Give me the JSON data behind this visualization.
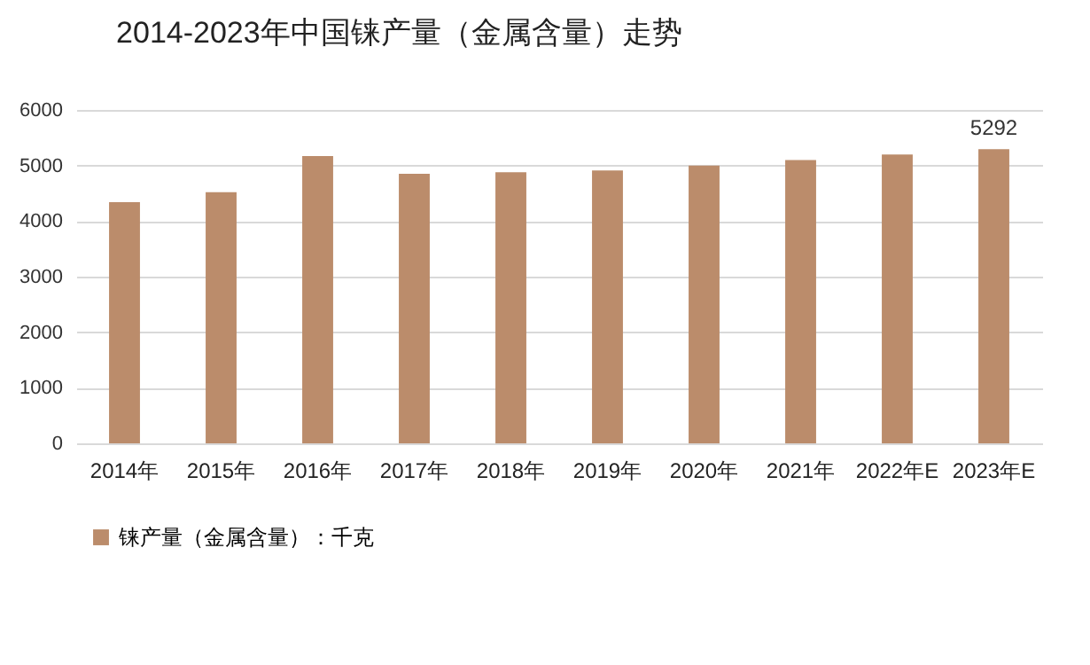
{
  "chart_data": {
    "type": "bar",
    "title": "2014-2023年中国铼产量（金属含量）走势",
    "categories": [
      "2014年",
      "2015年",
      "2016年",
      "2017年",
      "2018年",
      "2019年",
      "2020年",
      "2021年",
      "2022年E",
      "2023年E"
    ],
    "series": [
      {
        "name": "铼产量（金属含量）：千克",
        "color": "#bb8c6b",
        "values": [
          4340,
          4520,
          5170,
          4850,
          4880,
          4910,
          5000,
          5100,
          5200,
          5292
        ],
        "value_labels": [
          null,
          null,
          null,
          null,
          null,
          null,
          null,
          null,
          null,
          "5292"
        ]
      }
    ],
    "ylim": [
      0,
      6000
    ],
    "yticks": [
      0,
      1000,
      2000,
      3000,
      4000,
      5000,
      6000
    ],
    "grid": "y",
    "legend": "bottom"
  }
}
